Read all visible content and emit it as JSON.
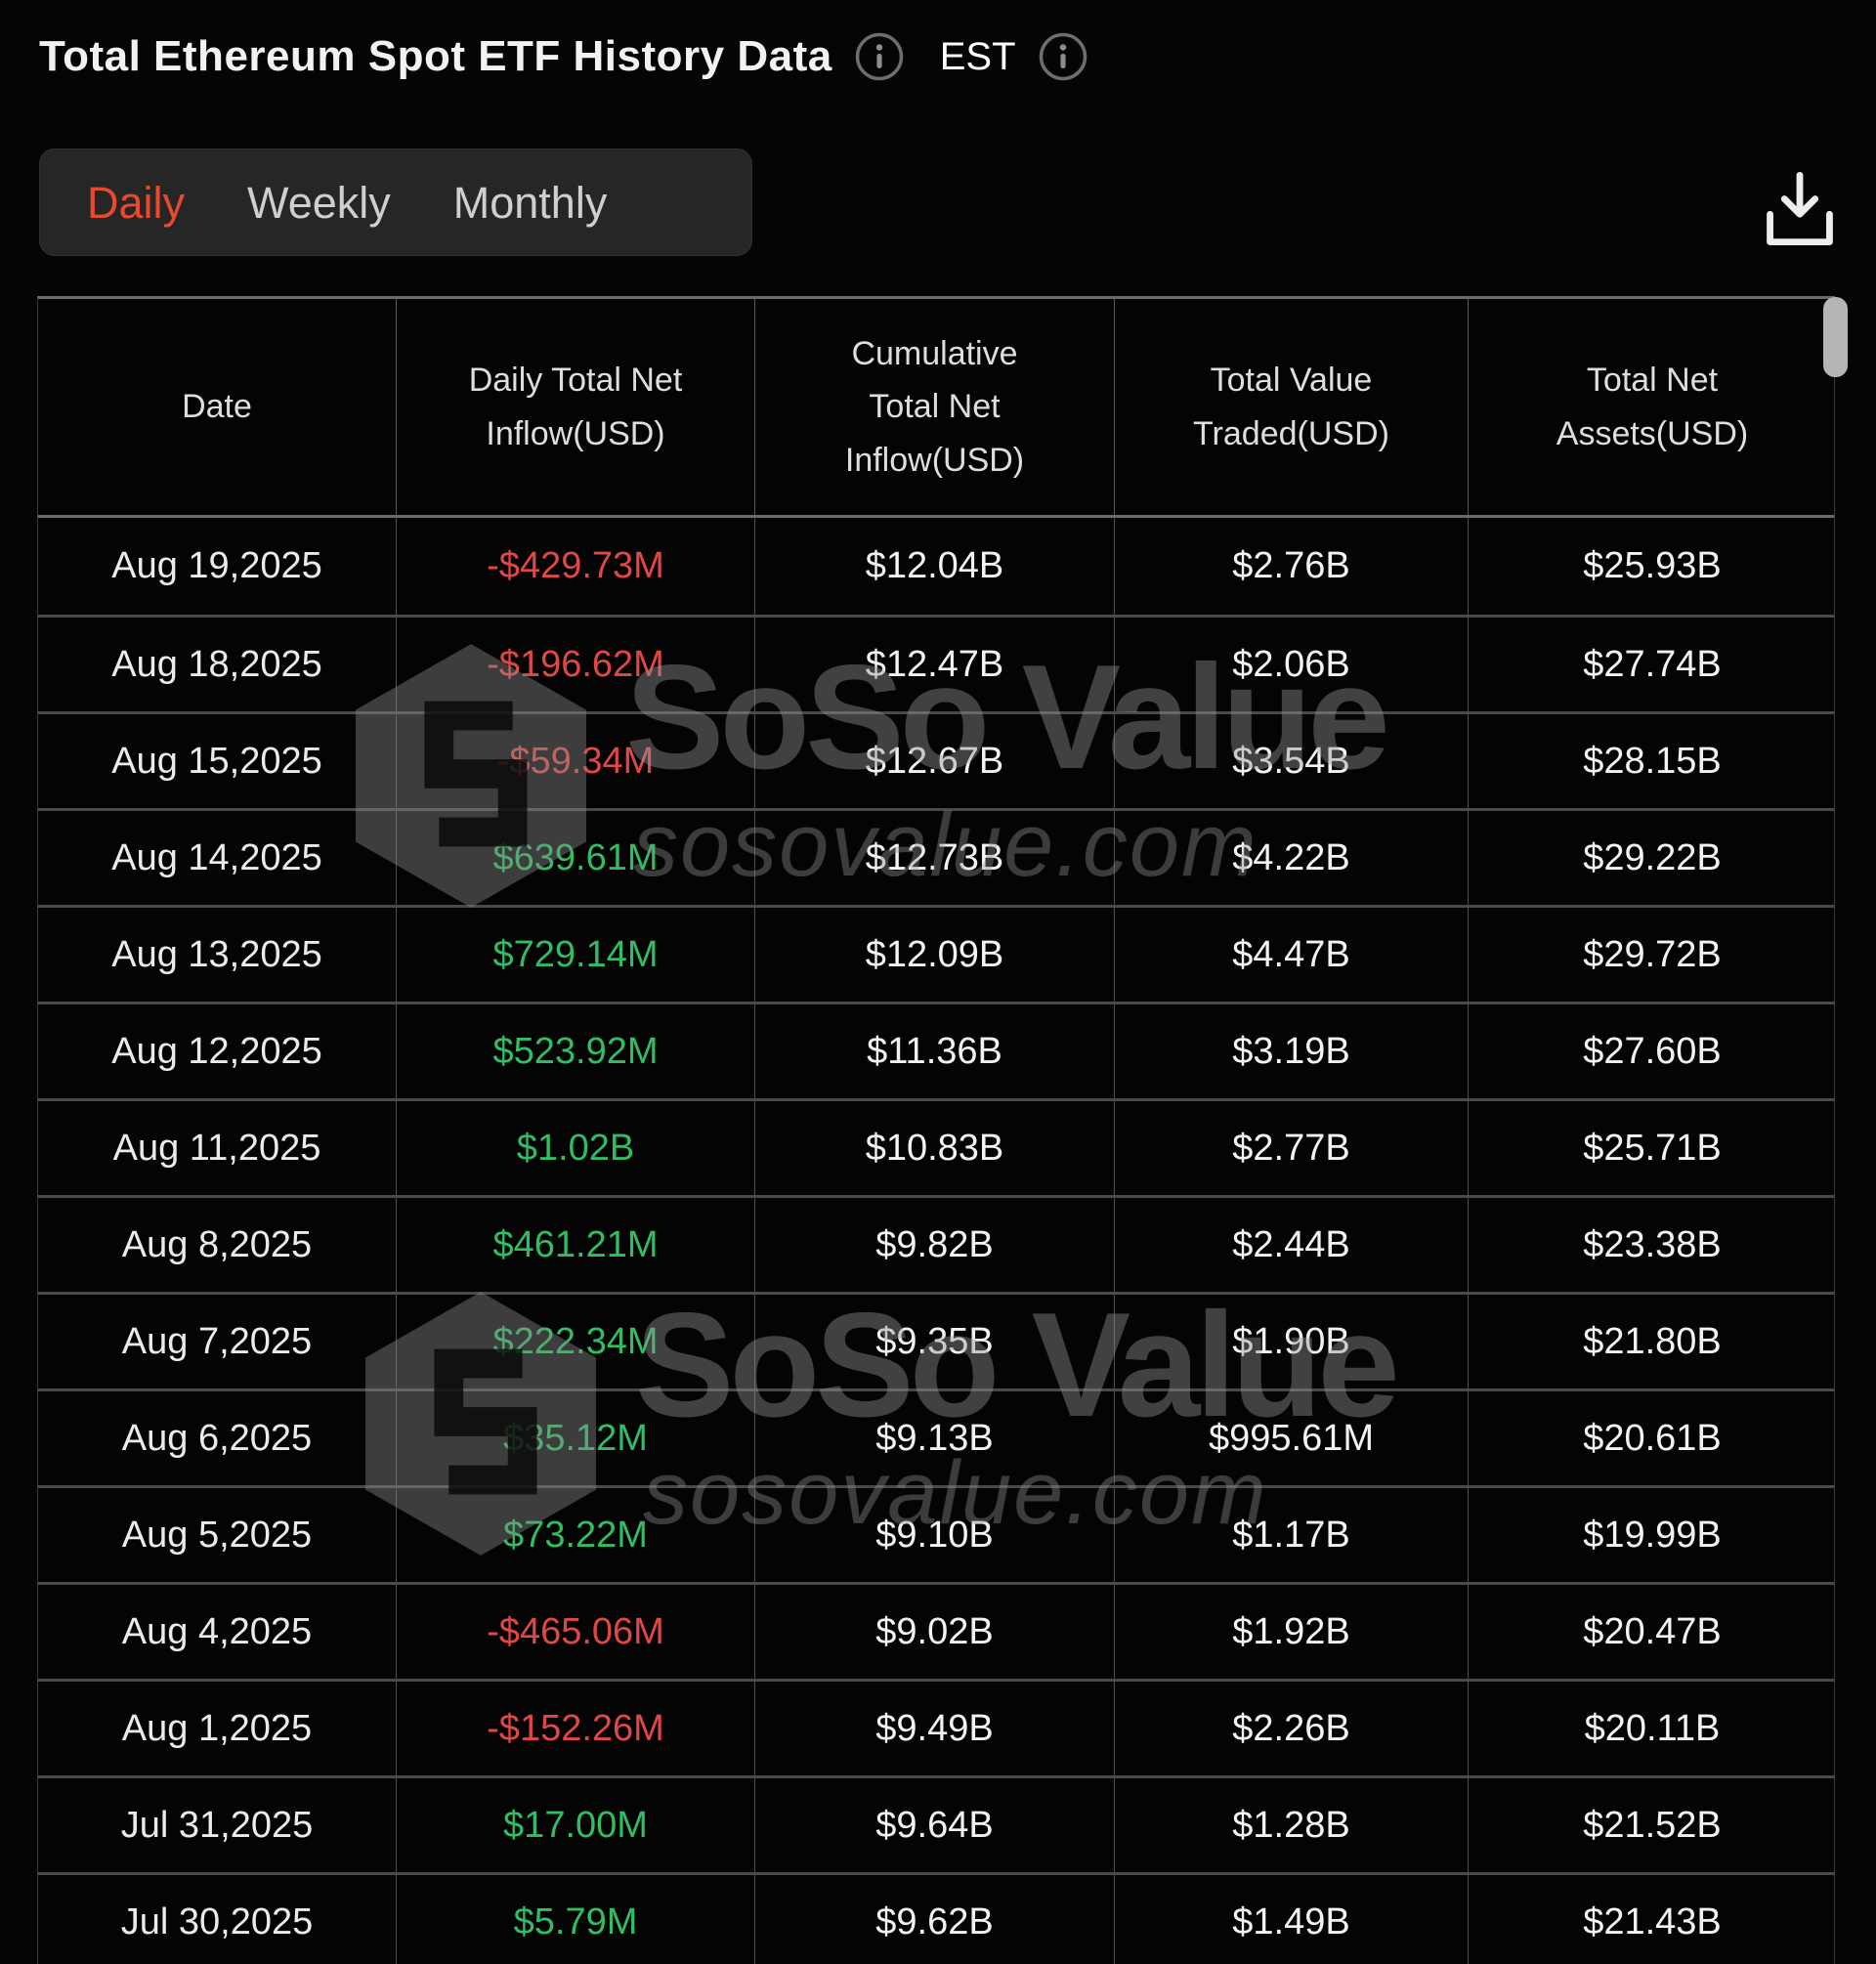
{
  "header": {
    "title": "Total Ethereum Spot ETF History Data",
    "timezone": "EST"
  },
  "tabs": [
    {
      "label": "Daily",
      "active": true
    },
    {
      "label": "Weekly",
      "active": false
    },
    {
      "label": "Monthly",
      "active": false
    }
  ],
  "icons": {
    "title_info": "info-circle",
    "timezone_info": "info-circle",
    "download": "download-tray-arrow",
    "watermark_logo": "sosovalue-cube"
  },
  "table": {
    "columns": [
      "Date",
      "Daily Total Net Inflow(USD)",
      "Cumulative Total Net Inflow(USD)",
      "Total Value Traded(USD)",
      "Total Net Assets(USD)"
    ],
    "rows": [
      {
        "date": "Aug 19,2025",
        "daily_inflow": "-$429.73M",
        "cumulative_inflow": "$12.04B",
        "value_traded": "$2.76B",
        "net_assets": "$25.93B"
      },
      {
        "date": "Aug 18,2025",
        "daily_inflow": "-$196.62M",
        "cumulative_inflow": "$12.47B",
        "value_traded": "$2.06B",
        "net_assets": "$27.74B"
      },
      {
        "date": "Aug 15,2025",
        "daily_inflow": "-$59.34M",
        "cumulative_inflow": "$12.67B",
        "value_traded": "$3.54B",
        "net_assets": "$28.15B"
      },
      {
        "date": "Aug 14,2025",
        "daily_inflow": "$639.61M",
        "cumulative_inflow": "$12.73B",
        "value_traded": "$4.22B",
        "net_assets": "$29.22B"
      },
      {
        "date": "Aug 13,2025",
        "daily_inflow": "$729.14M",
        "cumulative_inflow": "$12.09B",
        "value_traded": "$4.47B",
        "net_assets": "$29.72B"
      },
      {
        "date": "Aug 12,2025",
        "daily_inflow": "$523.92M",
        "cumulative_inflow": "$11.36B",
        "value_traded": "$3.19B",
        "net_assets": "$27.60B"
      },
      {
        "date": "Aug 11,2025",
        "daily_inflow": "$1.02B",
        "cumulative_inflow": "$10.83B",
        "value_traded": "$2.77B",
        "net_assets": "$25.71B"
      },
      {
        "date": "Aug 8,2025",
        "daily_inflow": "$461.21M",
        "cumulative_inflow": "$9.82B",
        "value_traded": "$2.44B",
        "net_assets": "$23.38B"
      },
      {
        "date": "Aug 7,2025",
        "daily_inflow": "$222.34M",
        "cumulative_inflow": "$9.35B",
        "value_traded": "$1.90B",
        "net_assets": "$21.80B"
      },
      {
        "date": "Aug 6,2025",
        "daily_inflow": "$35.12M",
        "cumulative_inflow": "$9.13B",
        "value_traded": "$995.61M",
        "net_assets": "$20.61B"
      },
      {
        "date": "Aug 5,2025",
        "daily_inflow": "$73.22M",
        "cumulative_inflow": "$9.10B",
        "value_traded": "$1.17B",
        "net_assets": "$19.99B"
      },
      {
        "date": "Aug 4,2025",
        "daily_inflow": "-$465.06M",
        "cumulative_inflow": "$9.02B",
        "value_traded": "$1.92B",
        "net_assets": "$20.47B"
      },
      {
        "date": "Aug 1,2025",
        "daily_inflow": "-$152.26M",
        "cumulative_inflow": "$9.49B",
        "value_traded": "$2.26B",
        "net_assets": "$20.11B"
      },
      {
        "date": "Jul 31,2025",
        "daily_inflow": "$17.00M",
        "cumulative_inflow": "$9.64B",
        "value_traded": "$1.28B",
        "net_assets": "$21.52B"
      },
      {
        "date": "Jul 30,2025",
        "daily_inflow": "$5.79M",
        "cumulative_inflow": "$9.62B",
        "value_traded": "$1.49B",
        "net_assets": "$21.43B"
      }
    ]
  },
  "watermark": {
    "brand": "SoSo Value",
    "domain": "sosovalue.com"
  },
  "colors": {
    "positive": "#31bd63",
    "negative": "#e04747",
    "active_tab": "#e8492f"
  }
}
